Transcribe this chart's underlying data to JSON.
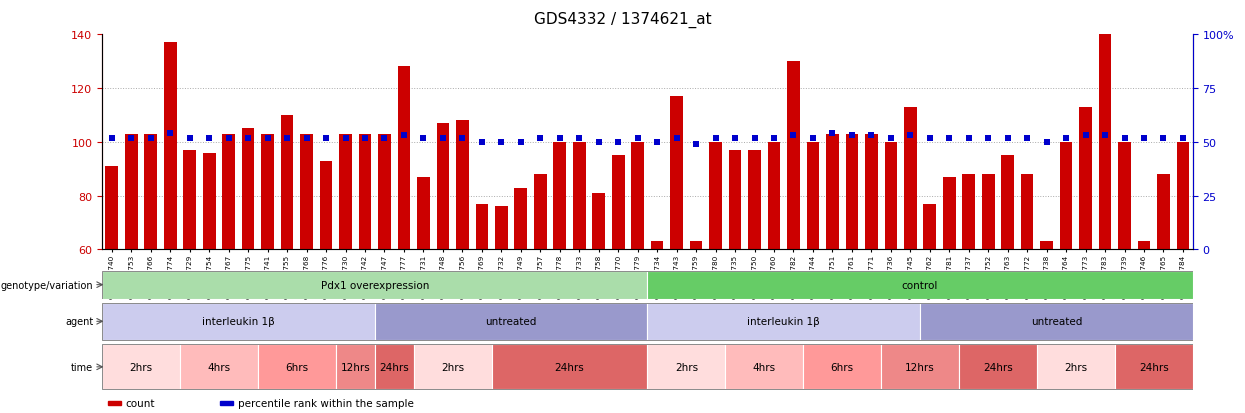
{
  "title": "GDS4332 / 1374621_at",
  "samples": [
    "GSM998740",
    "GSM998753",
    "GSM998766",
    "GSM998774",
    "GSM998729",
    "GSM998754",
    "GSM998767",
    "GSM998775",
    "GSM998741",
    "GSM998755",
    "GSM998768",
    "GSM998776",
    "GSM998730",
    "GSM998742",
    "GSM998747",
    "GSM998777",
    "GSM998731",
    "GSM998748",
    "GSM998756",
    "GSM998769",
    "GSM998732",
    "GSM998749",
    "GSM998757",
    "GSM998778",
    "GSM998733",
    "GSM998758",
    "GSM998770",
    "GSM998779",
    "GSM998734",
    "GSM998743",
    "GSM998759",
    "GSM998780",
    "GSM998735",
    "GSM998750",
    "GSM998760",
    "GSM998782",
    "GSM998744",
    "GSM998751",
    "GSM998761",
    "GSM998771",
    "GSM998736",
    "GSM998745",
    "GSM998762",
    "GSM998781",
    "GSM998737",
    "GSM998752",
    "GSM998763",
    "GSM998772",
    "GSM998738",
    "GSM998764",
    "GSM998773",
    "GSM998783",
    "GSM998739",
    "GSM998746",
    "GSM998765",
    "GSM998784"
  ],
  "counts": [
    91,
    103,
    103,
    137,
    97,
    96,
    103,
    105,
    103,
    110,
    103,
    93,
    103,
    103,
    103,
    128,
    87,
    107,
    108,
    77,
    76,
    83,
    88,
    100,
    100,
    81,
    95,
    100,
    63,
    117,
    63,
    100,
    97,
    97,
    100,
    130,
    100,
    103,
    103,
    103,
    100,
    113,
    77,
    87,
    88,
    88,
    95,
    88,
    63,
    100,
    113,
    140,
    100,
    63,
    88,
    100
  ],
  "percentile_ranks": [
    52,
    52,
    52,
    54,
    52,
    52,
    52,
    52,
    52,
    52,
    52,
    52,
    52,
    52,
    52,
    53,
    52,
    52,
    52,
    50,
    50,
    50,
    52,
    52,
    52,
    50,
    50,
    52,
    50,
    52,
    49,
    52,
    52,
    52,
    52,
    53,
    52,
    54,
    53,
    53,
    52,
    53,
    52,
    52,
    52,
    52,
    52,
    52,
    50,
    52,
    53,
    53,
    52,
    52,
    52,
    52
  ],
  "ymin": 60,
  "ymax": 140,
  "yticks_left": [
    60,
    80,
    100,
    120,
    140
  ],
  "yticks_right": [
    0,
    25,
    50,
    75,
    100
  ],
  "bar_color": "#CC0000",
  "dot_color": "#0000CC",
  "grid_color": "#AAAAAA",
  "tick_color_left": "#CC0000",
  "tick_color_right": "#0000CC",
  "genotype_groups": [
    {
      "label": "Pdx1 overexpression",
      "start": 0,
      "end": 28,
      "color": "#AADDAA"
    },
    {
      "label": "control",
      "start": 28,
      "end": 56,
      "color": "#66CC66"
    }
  ],
  "agent_groups": [
    {
      "label": "interleukin 1β",
      "start": 0,
      "end": 14,
      "color": "#CCCCEE"
    },
    {
      "label": "untreated",
      "start": 14,
      "end": 28,
      "color": "#9999CC"
    },
    {
      "label": "interleukin 1β",
      "start": 28,
      "end": 42,
      "color": "#CCCCEE"
    },
    {
      "label": "untreated",
      "start": 42,
      "end": 56,
      "color": "#9999CC"
    }
  ],
  "time_groups": [
    {
      "label": "2hrs",
      "start": 0,
      "end": 4,
      "color": "#FFDDDD"
    },
    {
      "label": "4hrs",
      "start": 4,
      "end": 8,
      "color": "#FFBBBB"
    },
    {
      "label": "6hrs",
      "start": 8,
      "end": 12,
      "color": "#FF9999"
    },
    {
      "label": "12hrs",
      "start": 12,
      "end": 14,
      "color": "#EE8888"
    },
    {
      "label": "24hrs",
      "start": 14,
      "end": 16,
      "color": "#DD6666"
    },
    {
      "label": "2hrs",
      "start": 16,
      "end": 20,
      "color": "#FFDDDD"
    },
    {
      "label": "24hrs",
      "start": 20,
      "end": 28,
      "color": "#DD6666"
    },
    {
      "label": "2hrs",
      "start": 28,
      "end": 32,
      "color": "#FFDDDD"
    },
    {
      "label": "4hrs",
      "start": 32,
      "end": 36,
      "color": "#FFBBBB"
    },
    {
      "label": "6hrs",
      "start": 36,
      "end": 40,
      "color": "#FF9999"
    },
    {
      "label": "12hrs",
      "start": 40,
      "end": 44,
      "color": "#EE8888"
    },
    {
      "label": "24hrs",
      "start": 44,
      "end": 48,
      "color": "#DD6666"
    },
    {
      "label": "2hrs",
      "start": 48,
      "end": 52,
      "color": "#FFDDDD"
    },
    {
      "label": "24hrs",
      "start": 52,
      "end": 56,
      "color": "#DD6666"
    }
  ],
  "row_labels": [
    "genotype/variation",
    "agent",
    "time"
  ],
  "legend_count_label": "count",
  "legend_percentile_label": "percentile rank within the sample"
}
